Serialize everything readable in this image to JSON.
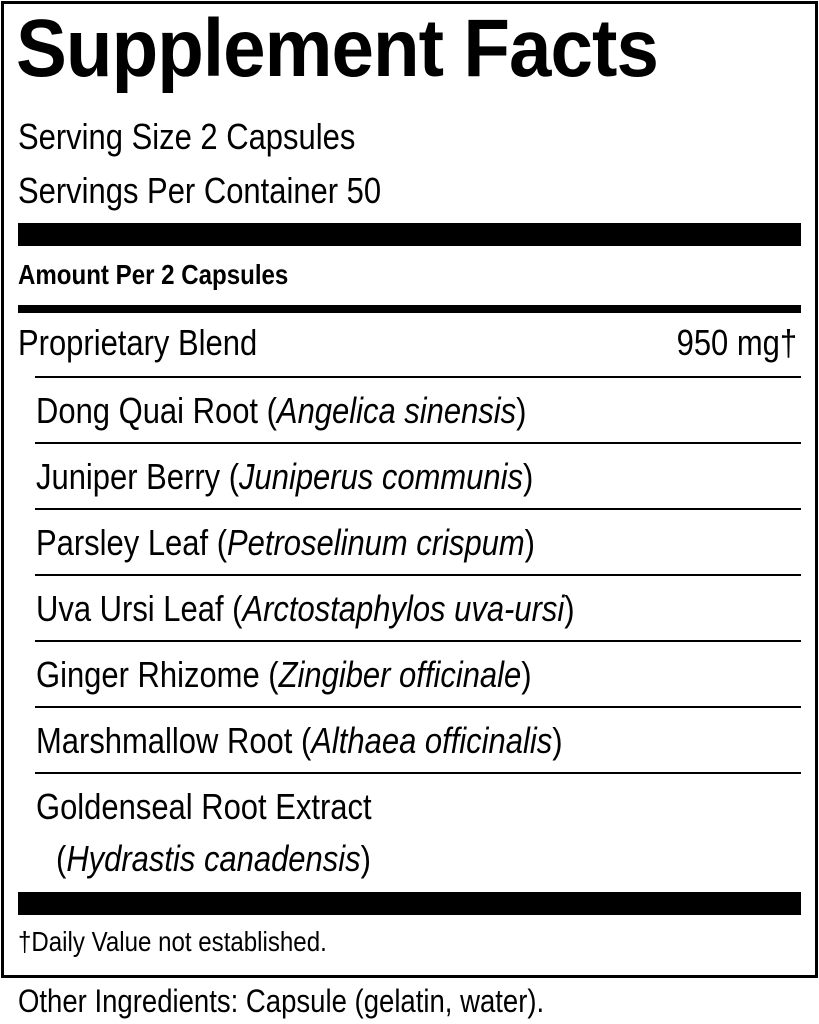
{
  "title": "Supplement Facts",
  "serving_size": "Serving Size 2 Capsules",
  "servings_per_container": "Servings Per Container 50",
  "amount_header": "Amount Per 2 Capsules",
  "blend": {
    "name": "Proprietary Blend",
    "amount": "950 mg†"
  },
  "ingredients": [
    {
      "name": "Dong Quai Root (",
      "latin": "Angelica sinensis",
      "close": ")"
    },
    {
      "name": "Juniper Berry (",
      "latin": "Juniperus communis",
      "close": ")"
    },
    {
      "name": "Parsley Leaf (",
      "latin": "Petroselinum crispum",
      "close": ")"
    },
    {
      "name": "Uva Ursi Leaf (",
      "latin": "Arctostaphylos uva-ursi",
      "close": ")"
    },
    {
      "name": "Ginger Rhizome (",
      "latin": "Zingiber officinale",
      "close": ")"
    },
    {
      "name": "Marshmallow Root (",
      "latin": "Althaea officinalis",
      "close": ")"
    },
    {
      "name": "Goldenseal Root Extract",
      "open": "(",
      "latin": "Hydrastis canadensis",
      "close": ")"
    }
  ],
  "footnote": "†Daily Value not established.",
  "other_ingredients": "Other Ingredients: Capsule (gelatin, water)."
}
